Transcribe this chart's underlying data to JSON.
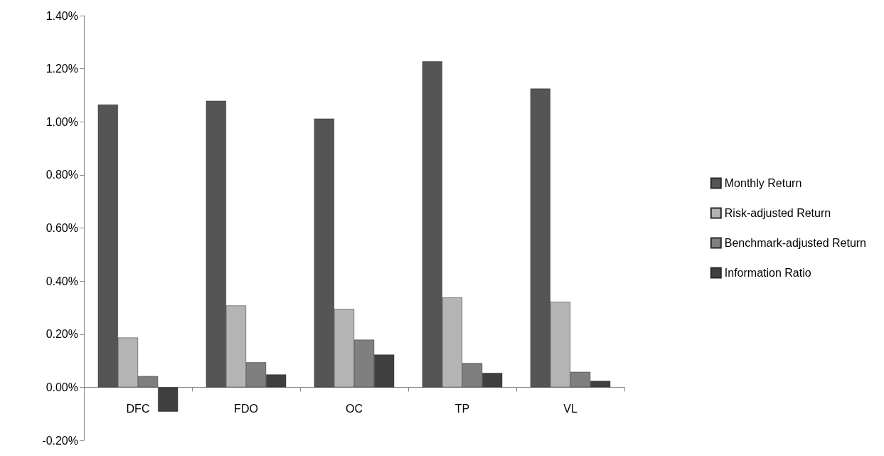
{
  "chart_data": {
    "type": "bar",
    "categories": [
      "DFC",
      "FDO",
      "OC",
      "TP",
      "VL"
    ],
    "series": [
      {
        "name": "Monthly Return",
        "color": "#555555",
        "values": [
          1.065,
          1.079,
          1.012,
          1.228,
          1.125
        ]
      },
      {
        "name": "Risk-adjusted Return",
        "color": "#b4b4b4",
        "values": [
          0.187,
          0.308,
          0.295,
          0.338,
          0.322
        ]
      },
      {
        "name": "Benchmark-adjusted Return",
        "color": "#7f7f7f",
        "values": [
          0.042,
          0.094,
          0.179,
          0.091,
          0.058
        ]
      },
      {
        "name": "Information Ratio",
        "color": "#3f3f3f",
        "values": [
          -0.092,
          0.048,
          0.123,
          0.054,
          0.024
        ]
      }
    ],
    "ylim": [
      -0.2,
      1.4
    ],
    "yticks": [
      {
        "value": -0.2,
        "label": "-0.20%"
      },
      {
        "value": 0,
        "label": "0.00%"
      },
      {
        "value": 0.2,
        "label": "0.20%"
      },
      {
        "value": 0.4,
        "label": "0.40%"
      },
      {
        "value": 0.6,
        "label": "0.60%"
      },
      {
        "value": 0.8,
        "label": "0.80%"
      },
      {
        "value": 1.0,
        "label": "1.00%"
      },
      {
        "value": 1.2,
        "label": "1.20%"
      },
      {
        "value": 1.4,
        "label": "1.40%"
      }
    ],
    "grid": false,
    "legend": "right"
  }
}
